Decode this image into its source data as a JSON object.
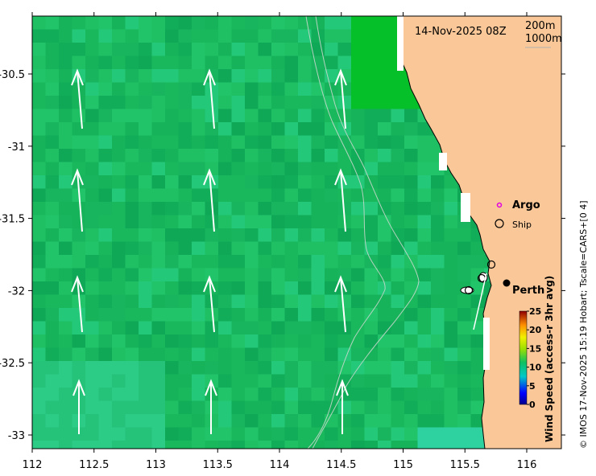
{
  "map": {
    "title_date": "14-Nov-2025 08Z",
    "contour_legend": [
      "200m",
      "1000m"
    ],
    "x_ticks": [
      "112",
      "112.5",
      "113",
      "113.5",
      "114",
      "114.5",
      "115",
      "115.5",
      "116"
    ],
    "y_ticks": [
      "-30.5",
      "-31",
      "-31.5",
      "-32",
      "-32.5",
      "-33"
    ],
    "legend": {
      "argo_label": "Argo",
      "ship_label": "Ship"
    },
    "city_label": "Perth",
    "colorbar": {
      "title": "Wind Speed (access-r 3hr avg)",
      "ticks": [
        "25",
        "20",
        "15",
        "10",
        "5",
        "0"
      ],
      "range": [
        0,
        25
      ]
    },
    "credit": "© IMOS 17-Nov-2025 15:19 Hobart; Tscale=CARS+[0 4]",
    "colors": {
      "land": "#FAC898",
      "ocean_base": "#1BB85A",
      "arrow": "#ffffff",
      "argo": "#E000E0"
    }
  }
}
